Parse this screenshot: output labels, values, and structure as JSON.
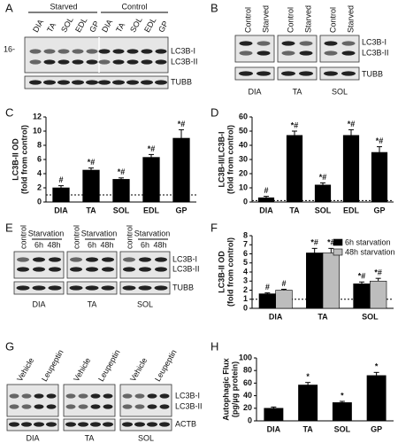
{
  "panel_labels": [
    "A",
    "B",
    "C",
    "D",
    "E",
    "F",
    "G",
    "H"
  ],
  "blots": [
    {
      "group_labels": [
        "Starved",
        "Control"
      ],
      "lanes": [
        "DIA",
        "TA",
        "SOL",
        "EDL",
        "GP",
        "DIA",
        "TA",
        "SOL",
        "EDL",
        "GP"
      ],
      "marker": "16-",
      "bands": [
        "LC3B-I",
        "LC3B-II"
      ],
      "loading": "TUBB"
    },
    {
      "blocks": [
        {
          "name": "DIA",
          "lanes": [
            "Control",
            "Starved"
          ]
        },
        {
          "name": "TA",
          "lanes": [
            "Control",
            "Starved"
          ]
        },
        {
          "name": "SOL",
          "lanes": [
            "Control",
            "Starved"
          ]
        }
      ],
      "bands": [
        "LC3B-I",
        "LC3B-II"
      ],
      "loading": "TUBB"
    },
    {
      "blocks": [
        {
          "name": "DIA",
          "control": "control",
          "group": "Starvation",
          "times": [
            "6h",
            "48h"
          ]
        },
        {
          "name": "TA",
          "control": "control",
          "group": "Starvation",
          "times": [
            "6h",
            "48h"
          ]
        },
        {
          "name": "SOL",
          "control": "control",
          "group": "Starvation",
          "times": [
            "6h",
            "48h"
          ]
        }
      ],
      "bands": [
        "LC3B-I",
        "LC3B-II"
      ],
      "loading": "TUBB"
    },
    {
      "blocks": [
        {
          "name": "DIA",
          "lanes": [
            "Vehicle",
            "Leupeptin"
          ]
        },
        {
          "name": "TA",
          "lanes": [
            "Vehicle",
            "Leupeptin"
          ]
        },
        {
          "name": "SOL",
          "lanes": [
            "Vehicle",
            "Leupeptin"
          ]
        }
      ],
      "bands": [
        "LC3B-I",
        "LC3B-II"
      ],
      "loading": "ACTB"
    }
  ],
  "chart_data": [
    {
      "type": "bar",
      "ylabel": [
        "LC3B-II OD",
        "(fold from control)"
      ],
      "categories": [
        "DIA",
        "TA",
        "SOL",
        "EDL",
        "GP"
      ],
      "values": [
        2,
        4.5,
        3.2,
        6.3,
        9
      ],
      "errors": [
        0.3,
        0.3,
        0.2,
        0.4,
        1.2
      ],
      "annotations": [
        "#",
        "*#",
        "*#",
        "*#",
        "*#"
      ],
      "color": "#000000",
      "ylim": [
        0,
        12
      ],
      "yticks": [
        0,
        2,
        4,
        6,
        8,
        10,
        12
      ],
      "reference_line": 1
    },
    {
      "type": "bar",
      "ylabel": [
        "LC3B-II/LC3B-I",
        "(fold from control)"
      ],
      "categories": [
        "DIA",
        "TA",
        "SOL",
        "EDL",
        "GP"
      ],
      "values": [
        3,
        47,
        12,
        47,
        35
      ],
      "errors": [
        1,
        3,
        1.5,
        4,
        4
      ],
      "annotations": [
        "#",
        "*#",
        "*#",
        "*#",
        "*#"
      ],
      "color": "#000000",
      "ylim": [
        0,
        60
      ],
      "yticks": [
        0,
        10,
        20,
        30,
        40,
        50,
        60
      ],
      "reference_line": 1
    },
    {
      "type": "bar",
      "ylabel": [
        "LC3B-II OD",
        "(fold from control)"
      ],
      "categories": [
        "DIA",
        "TA",
        "SOL"
      ],
      "series": [
        {
          "name": "6h starvation",
          "color": "#000000",
          "values": [
            1.6,
            6.1,
            2.7
          ],
          "errors": [
            0.1,
            0.5,
            0.2
          ],
          "annotations": [
            "#",
            "*#",
            "*#"
          ]
        },
        {
          "name": "48h starvation",
          "color": "#bdbdbd",
          "values": [
            2.0,
            6.1,
            3.0
          ],
          "errors": [
            0.1,
            0.5,
            0.3
          ],
          "annotations": [
            "#",
            "*#",
            "*#"
          ]
        }
      ],
      "ylim": [
        0,
        8
      ],
      "yticks": [
        0,
        1,
        2,
        3,
        4,
        5,
        6,
        7,
        8
      ],
      "reference_line": 1,
      "legend": "top-right"
    },
    {
      "type": "bar",
      "ylabel": [
        "Autophagic Flux",
        "(pg/µg protein)"
      ],
      "categories": [
        "DIA",
        "TA",
        "SOL",
        "GP"
      ],
      "values": [
        20,
        57,
        29,
        72
      ],
      "errors": [
        2,
        4,
        2,
        5
      ],
      "annotations": [
        null,
        "*",
        "*",
        "*"
      ],
      "color": "#000000",
      "ylim": [
        0,
        100
      ],
      "yticks": [
        0,
        20,
        40,
        60,
        80,
        100
      ]
    }
  ]
}
